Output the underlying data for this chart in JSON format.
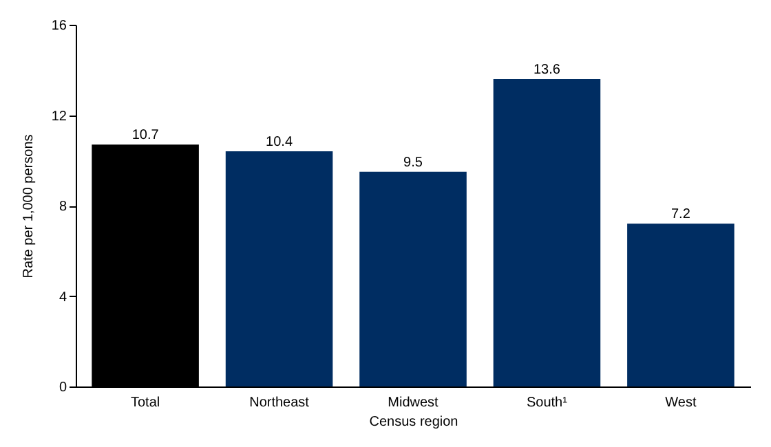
{
  "chart_data": {
    "type": "bar",
    "categories": [
      "Total",
      "Northeast",
      "Midwest",
      "South¹",
      "West"
    ],
    "values": [
      10.7,
      10.4,
      9.5,
      13.6,
      7.2
    ],
    "colors": [
      "#000000",
      "#002d62",
      "#002d62",
      "#002d62",
      "#002d62"
    ],
    "xlabel": "Census region",
    "ylabel": "Rate per 1,000 persons",
    "ylim": [
      0,
      16
    ],
    "yticks": [
      0,
      4,
      8,
      12,
      16
    ],
    "grid": false,
    "data_labels": true
  }
}
